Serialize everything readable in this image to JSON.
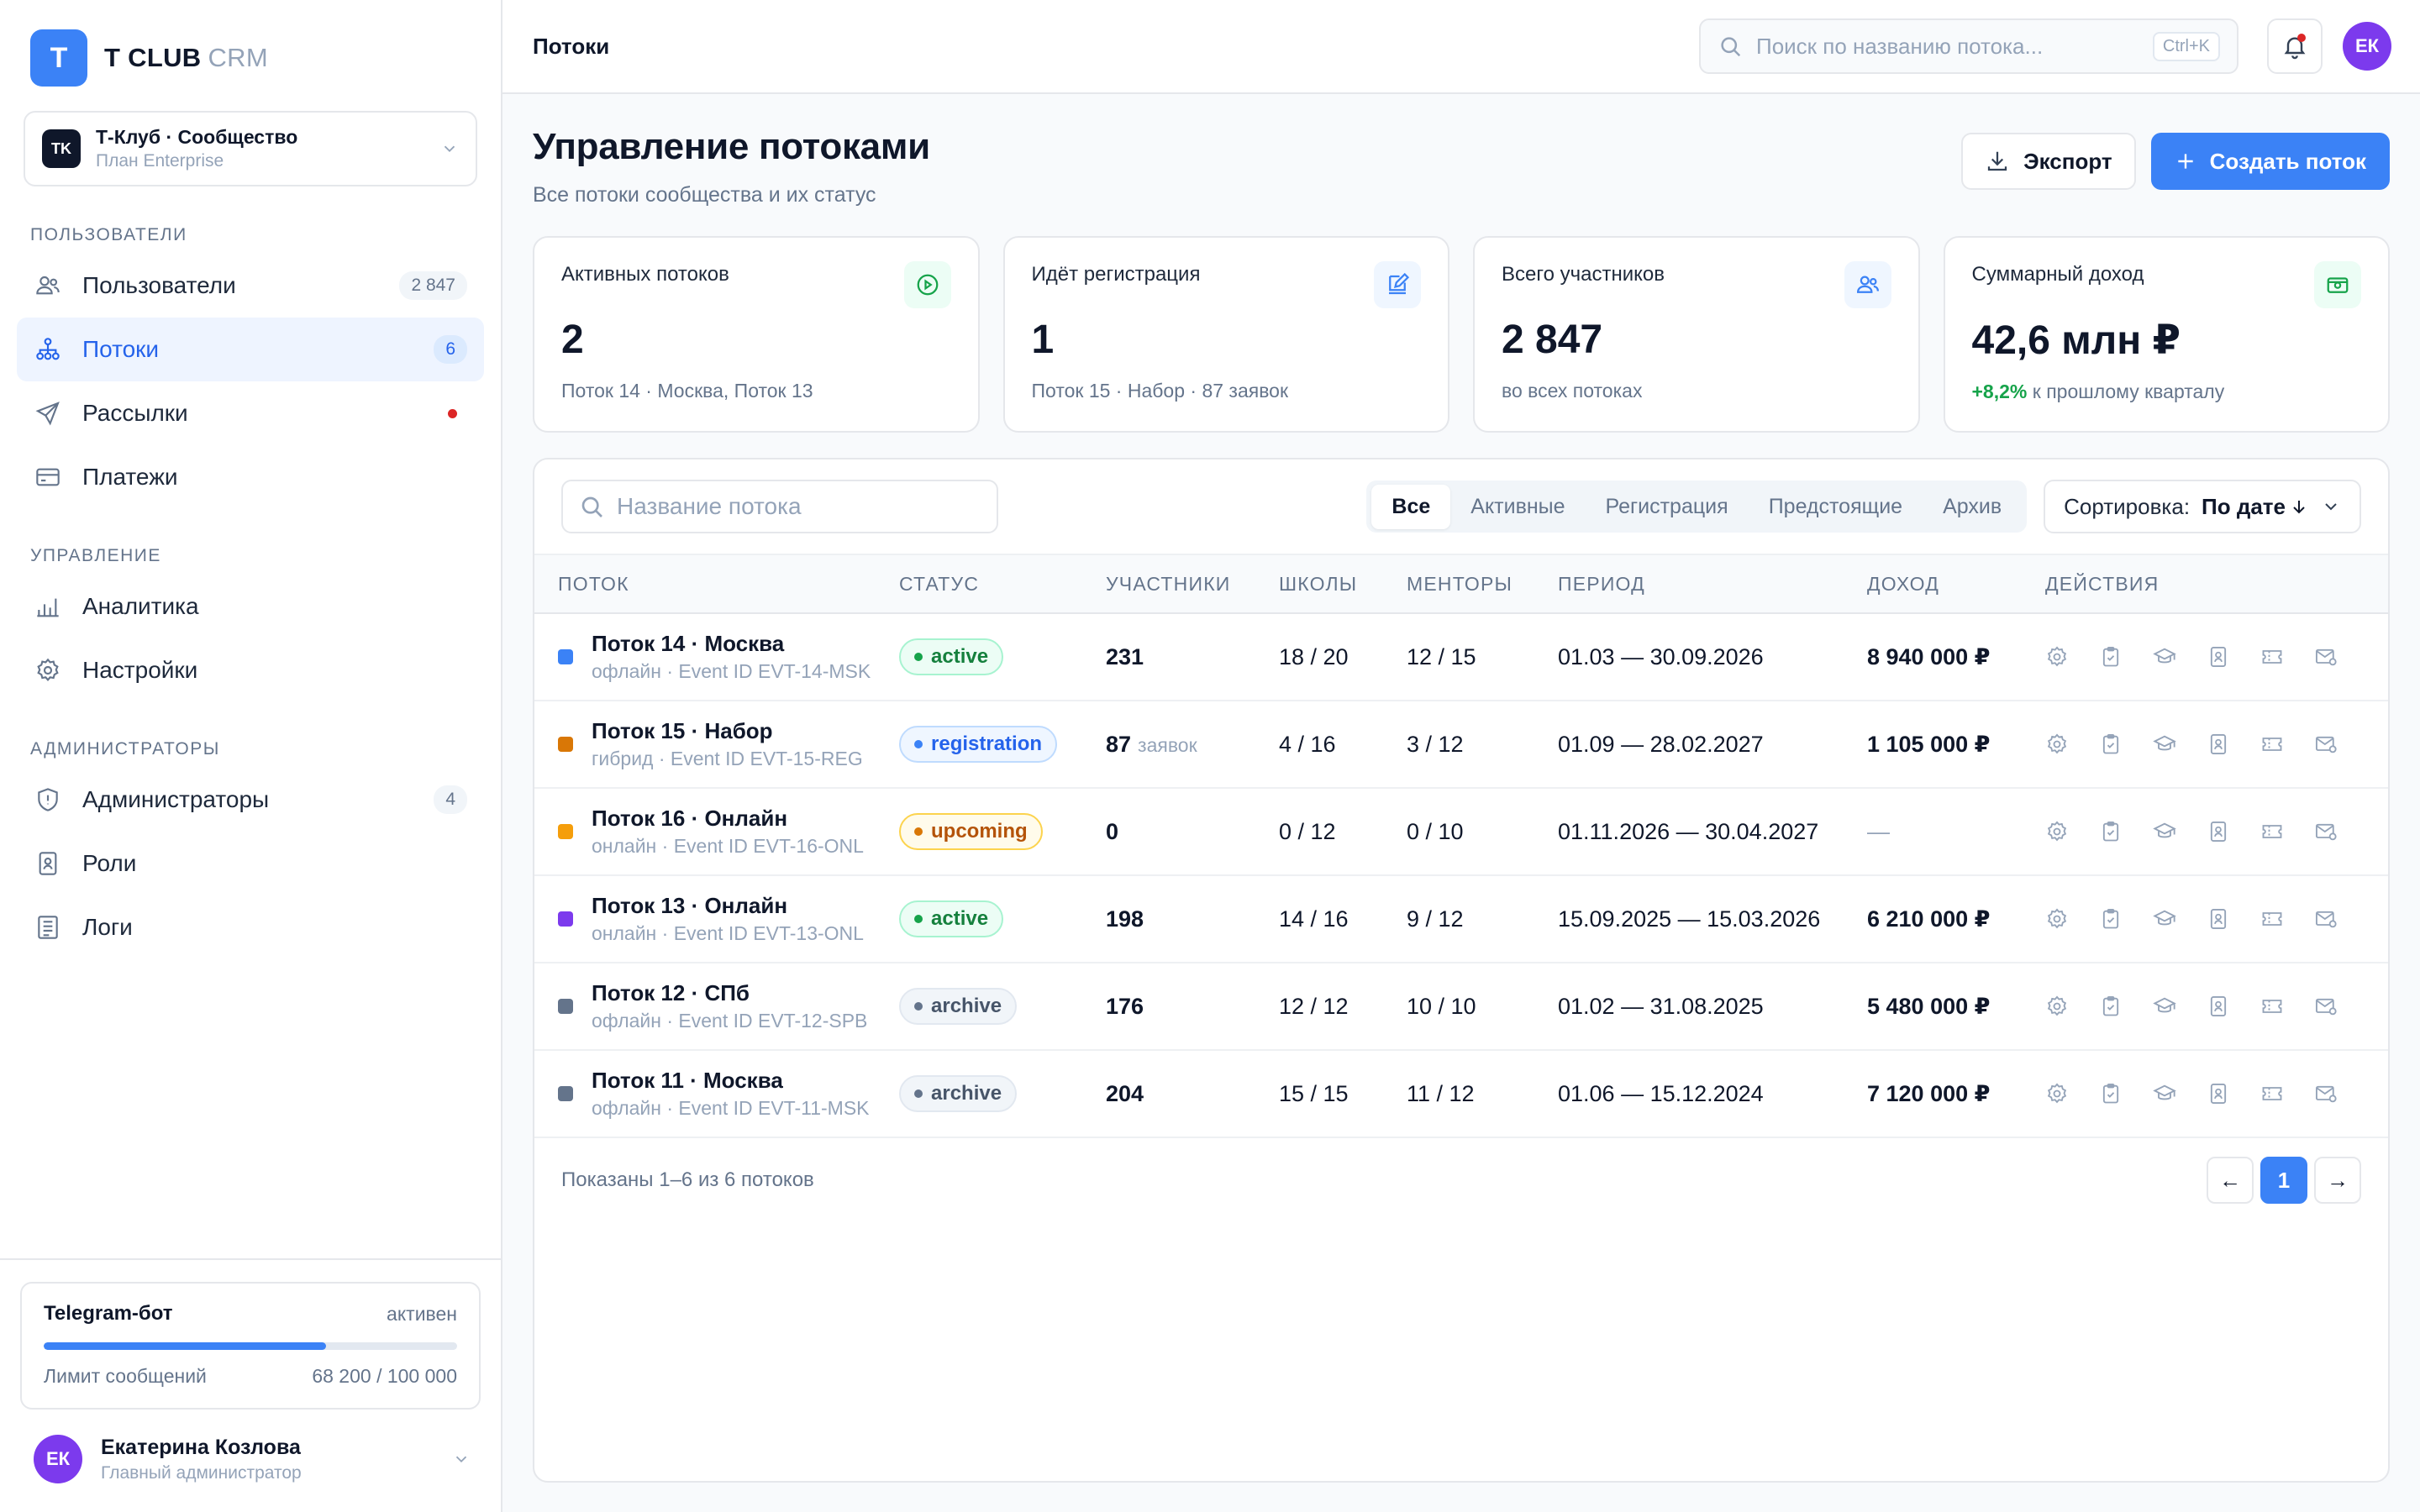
{
  "brand": {
    "logo_letter": "T",
    "name": "T CLUB",
    "suffix": "CRM",
    "accent": "#3b82f6"
  },
  "org": {
    "initials": "TK",
    "name": "Т-Клуб · Сообщество",
    "plan": "План Enterprise"
  },
  "sidebar": {
    "sections": [
      {
        "title": "ПОЛЬЗОВАТЕЛИ"
      },
      {
        "title": "УПРАВЛЕНИЕ"
      },
      {
        "title": "АДМИНИСТРАТОРЫ"
      }
    ],
    "items": [
      {
        "label": "Пользователи",
        "count": "2 847",
        "icon": "users-icon"
      },
      {
        "label": "Потоки",
        "count": "6",
        "icon": "hierarchy-icon",
        "active": true
      },
      {
        "label": "Рассылки",
        "icon": "send-icon",
        "dot": true
      },
      {
        "label": "Платежи",
        "icon": "credit-card-icon"
      },
      {
        "label": "Аналитика",
        "icon": "bar-chart-icon"
      },
      {
        "label": "Настройки",
        "icon": "gear-icon"
      },
      {
        "label": "Администраторы",
        "count": "4",
        "icon": "shield-icon"
      },
      {
        "label": "Роли",
        "icon": "id-badge-icon"
      },
      {
        "label": "Логи",
        "icon": "log-list-icon"
      }
    ]
  },
  "bot": {
    "title": "Telegram-бот",
    "state": "активен",
    "limit_label": "Лимит сообщений",
    "limit_value": "68 200 / 100 000",
    "usage_fraction": 0.682
  },
  "user": {
    "initials": "ЕК",
    "name": "Екатерина Козлова",
    "role": "Главный администратор"
  },
  "topbar": {
    "title": "Потоки",
    "search_placeholder": "Поиск по названию потока...",
    "shortcut": "Ctrl+K",
    "avatar_initials": "ЕК"
  },
  "page": {
    "title": "Управление потоками",
    "subtitle": "Все потоки сообщества и их статус",
    "export_label": "Экспорт",
    "create_label": "Создать поток"
  },
  "stats": [
    {
      "label": "Активных потоков",
      "value": "2",
      "note": "Поток 14 · Москва, Поток 13",
      "icon": "play-circle-icon",
      "color": "#16a34a"
    },
    {
      "label": "Идёт регистрация",
      "value": "1",
      "note": "Поток 15 · Набор · 87 заявок",
      "icon": "edit-icon",
      "color": "#3b82f6"
    },
    {
      "label": "Всего участников",
      "value": "2 847",
      "note": "во всех потоках",
      "icon": "users-icon",
      "color": "#3b82f6"
    },
    {
      "label": "Суммарный доход",
      "value": "42,6 млн ₽",
      "note_up": "+8,2%",
      "note": "к прошлому кварталу",
      "icon": "banknote-icon",
      "color": "#16a34a"
    }
  ],
  "table": {
    "search_placeholder": "Название потока",
    "filters": [
      "Все",
      "Активные",
      "Регистрация",
      "Предстоящие",
      "Архив"
    ],
    "active_filter": "Все",
    "sort_label": "Сортировка:",
    "sort_value": "По дате",
    "columns": [
      "ПОТОК",
      "СТАТУС",
      "УЧАСТНИКИ",
      "ШКОЛЫ",
      "МЕНТОРЫ",
      "ПЕРИОД",
      "ДОХОД",
      "ДЕЙСТВИЯ"
    ],
    "rows": [
      {
        "color": "#3b82f6",
        "name": "Поток 14 · Москва",
        "meta": "офлайн · Event ID EVT-14-MSK",
        "status": "active",
        "members": "231",
        "members_extra": "",
        "schools": "18 / 20",
        "mentors": "12 / 15",
        "period": "01.03 — 30.09.2026",
        "income": "8 940 000 ₽"
      },
      {
        "color": "#d97706",
        "name": "Поток 15 · Набор",
        "meta": "гибрид · Event ID EVT-15-REG",
        "status": "registration",
        "members": "87",
        "members_extra": "заявок",
        "schools": "4 / 16",
        "mentors": "3 / 12",
        "period": "01.09 — 28.02.2027",
        "income": "1 105 000 ₽"
      },
      {
        "color": "#f59e0b",
        "name": "Поток 16 · Онлайн",
        "meta": "онлайн · Event ID EVT-16-ONL",
        "status": "upcoming",
        "members": "0",
        "members_extra": "",
        "schools": "0 / 12",
        "mentors": "0 / 10",
        "period": "01.11.2026 — 30.04.2027",
        "income": "—"
      },
      {
        "color": "#7c3aed",
        "name": "Поток 13 · Онлайн",
        "meta": "онлайн · Event ID EVT-13-ONL",
        "status": "active",
        "members": "198",
        "members_extra": "",
        "schools": "14 / 16",
        "mentors": "9 / 12",
        "period": "15.09.2025 — 15.03.2026",
        "income": "6 210 000 ₽"
      },
      {
        "color": "#64748b",
        "name": "Поток 12 · СПб",
        "meta": "офлайн · Event ID EVT-12-SPB",
        "status": "archive",
        "members": "176",
        "members_extra": "",
        "schools": "12 / 12",
        "mentors": "10 / 10",
        "period": "01.02 — 31.08.2025",
        "income": "5 480 000 ₽"
      },
      {
        "color": "#64748b",
        "name": "Поток 11 · Москва",
        "meta": "офлайн · Event ID EVT-11-MSK",
        "status": "archive",
        "members": "204",
        "members_extra": "",
        "schools": "15 / 15",
        "mentors": "11 / 12",
        "period": "01.06 — 15.12.2024",
        "income": "7 120 000 ₽"
      }
    ],
    "row_actions": [
      "gear-icon",
      "clipboard-icon",
      "graduation-cap-icon",
      "id-badge-icon",
      "ticket-icon",
      "mail-settings-icon"
    ],
    "footer": "Показаны 1–6 из 6 потоков",
    "pagination": {
      "prev": "←",
      "current": "1",
      "next": "→"
    }
  }
}
